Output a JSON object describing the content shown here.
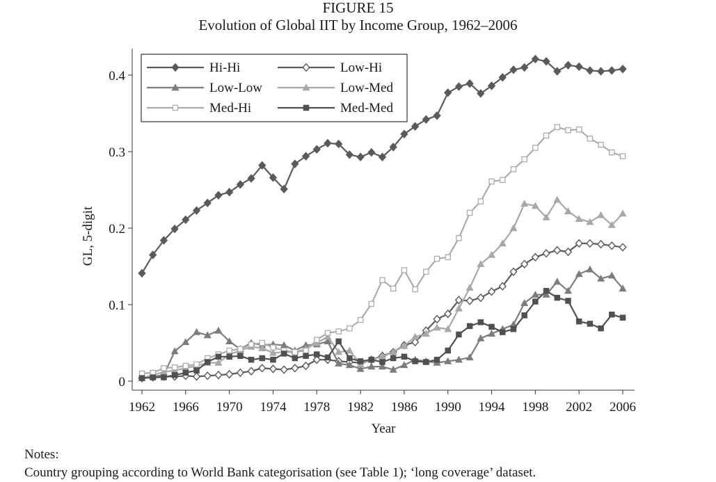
{
  "figure_label": "FIGURE 15",
  "notes": {
    "heading": "Notes:",
    "text": "Country grouping according to World Bank categorisation (see Table 1); ‘long coverage’ dataset."
  },
  "chart_data": {
    "type": "line",
    "title": "Evolution of Global IIT by Income Group, 1962–2006",
    "xlabel": "Year",
    "ylabel": "GL, 5-digit",
    "xlim": [
      1962,
      2006
    ],
    "ylim": [
      0,
      0.42
    ],
    "x_ticks": [
      1962,
      1966,
      1970,
      1974,
      1978,
      1982,
      1986,
      1990,
      1994,
      1998,
      2002,
      2006
    ],
    "y_ticks": [
      0,
      0.1,
      0.2,
      0.3,
      0.4
    ],
    "y_tick_labels": [
      "0",
      "0.1",
      "0.2",
      "0.3",
      "0.4"
    ],
    "grid": false,
    "legend_placement": "top-left",
    "x": [
      1962,
      1963,
      1964,
      1965,
      1966,
      1967,
      1968,
      1969,
      1970,
      1971,
      1972,
      1973,
      1974,
      1975,
      1976,
      1977,
      1978,
      1979,
      1980,
      1981,
      1982,
      1983,
      1984,
      1985,
      1986,
      1987,
      1988,
      1989,
      1990,
      1991,
      1992,
      1993,
      1994,
      1995,
      1996,
      1997,
      1998,
      1999,
      2000,
      2001,
      2002,
      2003,
      2004,
      2005,
      2006
    ],
    "series": [
      {
        "name": "Hi-Hi",
        "marker": "diamond-filled",
        "color": "#5a5a5a",
        "values": [
          0.141,
          0.165,
          0.184,
          0.199,
          0.211,
          0.223,
          0.233,
          0.243,
          0.247,
          0.257,
          0.265,
          0.282,
          0.266,
          0.251,
          0.284,
          0.294,
          0.303,
          0.311,
          0.31,
          0.296,
          0.293,
          0.299,
          0.293,
          0.306,
          0.323,
          0.333,
          0.342,
          0.347,
          0.377,
          0.385,
          0.389,
          0.376,
          0.386,
          0.397,
          0.407,
          0.41,
          0.421,
          0.418,
          0.405,
          0.413,
          0.411,
          0.406,
          0.405,
          0.406,
          0.408
        ]
      },
      {
        "name": "Low-Hi",
        "marker": "diamond-open",
        "color": "#5a5a5a",
        "values": [
          0.004,
          0.005,
          0.006,
          0.006,
          0.007,
          0.006,
          0.007,
          0.008,
          0.009,
          0.011,
          0.013,
          0.017,
          0.016,
          0.015,
          0.017,
          0.02,
          0.028,
          0.028,
          0.026,
          0.025,
          0.024,
          0.028,
          0.033,
          0.038,
          0.047,
          0.051,
          0.066,
          0.081,
          0.088,
          0.106,
          0.105,
          0.109,
          0.117,
          0.124,
          0.143,
          0.153,
          0.162,
          0.167,
          0.171,
          0.169,
          0.18,
          0.18,
          0.179,
          0.177,
          0.175
        ]
      },
      {
        "name": "Low-Low",
        "marker": "triangle-filled",
        "color": "#7c7c7c",
        "values": [
          0.004,
          0.006,
          0.008,
          0.039,
          0.051,
          0.064,
          0.06,
          0.066,
          0.052,
          0.042,
          0.05,
          0.047,
          0.048,
          0.047,
          0.04,
          0.047,
          0.048,
          0.052,
          0.023,
          0.021,
          0.016,
          0.019,
          0.019,
          0.015,
          0.021,
          0.028,
          0.026,
          0.024,
          0.026,
          0.028,
          0.031,
          0.056,
          0.062,
          0.068,
          0.074,
          0.102,
          0.113,
          0.113,
          0.13,
          0.118,
          0.14,
          0.146,
          0.134,
          0.138,
          0.121
        ]
      },
      {
        "name": "Low-Med",
        "marker": "triangle-filled",
        "color": "#a8a8a8",
        "values": [
          0.004,
          0.008,
          0.012,
          0.014,
          0.017,
          0.02,
          0.024,
          0.024,
          0.035,
          0.04,
          0.045,
          0.043,
          0.037,
          0.038,
          0.038,
          0.042,
          0.05,
          0.058,
          0.038,
          0.04,
          0.022,
          0.028,
          0.032,
          0.038,
          0.046,
          0.058,
          0.062,
          0.07,
          0.068,
          0.095,
          0.122,
          0.153,
          0.165,
          0.18,
          0.2,
          0.232,
          0.229,
          0.214,
          0.237,
          0.222,
          0.212,
          0.208,
          0.217,
          0.204,
          0.219
        ]
      },
      {
        "name": "Med-Hi",
        "marker": "square-open",
        "color": "#ababab",
        "values": [
          0.01,
          0.011,
          0.017,
          0.018,
          0.02,
          0.022,
          0.03,
          0.035,
          0.04,
          0.042,
          0.048,
          0.05,
          0.044,
          0.04,
          0.038,
          0.04,
          0.054,
          0.063,
          0.065,
          0.069,
          0.08,
          0.101,
          0.132,
          0.121,
          0.145,
          0.12,
          0.143,
          0.16,
          0.162,
          0.187,
          0.22,
          0.235,
          0.261,
          0.263,
          0.277,
          0.29,
          0.305,
          0.321,
          0.332,
          0.328,
          0.329,
          0.317,
          0.309,
          0.299,
          0.294
        ]
      },
      {
        "name": "Med-Med",
        "marker": "square-filled",
        "color": "#505050",
        "values": [
          0.004,
          0.005,
          0.005,
          0.008,
          0.011,
          0.014,
          0.025,
          0.032,
          0.032,
          0.033,
          0.028,
          0.03,
          0.028,
          0.036,
          0.03,
          0.033,
          0.035,
          0.031,
          0.052,
          0.03,
          0.026,
          0.028,
          0.025,
          0.03,
          0.032,
          0.026,
          0.025,
          0.028,
          0.04,
          0.061,
          0.072,
          0.077,
          0.071,
          0.064,
          0.068,
          0.086,
          0.104,
          0.118,
          0.109,
          0.105,
          0.078,
          0.075,
          0.069,
          0.087,
          0.083
        ]
      }
    ]
  }
}
